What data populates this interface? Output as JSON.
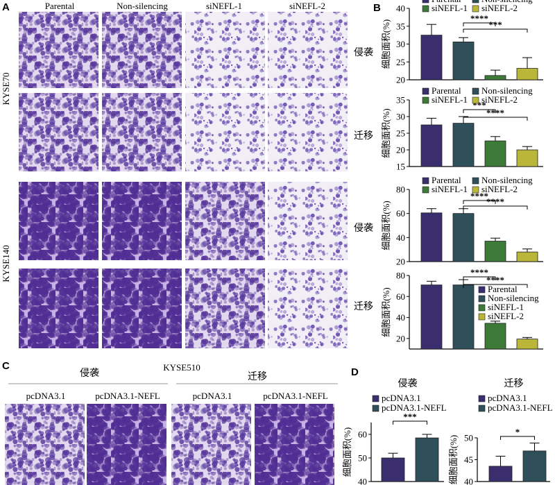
{
  "panels": {
    "A": "A",
    "B": "B",
    "C": "C",
    "D": "D"
  },
  "panel_a": {
    "columns": [
      "Parental",
      "Non-silencing",
      "siNEFL-1",
      "siNEFL-2"
    ],
    "row_groups": [
      "KYSE70",
      "KYSE140"
    ],
    "row_labels": [
      "侵袭",
      "迁移",
      "侵袭",
      "迁移"
    ]
  },
  "panel_c": {
    "cell_line": "KYSE510",
    "group_labels": [
      "侵袭",
      "迁移"
    ],
    "columns": [
      "pcDNA3.1",
      "pcDNA3.1-NEFL",
      "pcDNA3.1",
      "pcDNA3.1-NEFL"
    ]
  },
  "colors": {
    "parental": "#3b2e6e",
    "non_silencing": "#2f4f5a",
    "sinefl1": "#3d7a38",
    "sinefl2": "#b9b63a",
    "pcdna": "#3b2e6e",
    "pcdna_nefl": "#2f4f5a",
    "stain_dark": "#5a3a9e",
    "stain_light": "#c9b8e6",
    "background_light": "#ece6f1"
  },
  "chart_data": [
    {
      "type": "bar",
      "panel": "B",
      "row": "KYSE70 侵袭",
      "categories": [
        "Parental",
        "Non-silencing",
        "siNEFL-1",
        "siNEFL-2"
      ],
      "values": [
        32.5,
        30.6,
        21.2,
        23.2
      ],
      "errors": [
        3.0,
        1.2,
        1.5,
        3.0
      ],
      "ylim": [
        20,
        40
      ],
      "yticks": [
        20,
        25,
        30,
        35,
        40
      ],
      "ylabel": "细胞面积(%)",
      "legend": "top",
      "significance": [
        {
          "from": 1,
          "to": 2,
          "label": "****"
        },
        {
          "from": 1,
          "to": 3,
          "label": "***"
        }
      ]
    },
    {
      "type": "bar",
      "panel": "B",
      "row": "KYSE70 迁移",
      "categories": [
        "Parental",
        "Non-silencing",
        "siNEFL-1",
        "siNEFL-2"
      ],
      "values": [
        27.5,
        28.0,
        22.7,
        20.0
      ],
      "errors": [
        2.0,
        2.0,
        1.3,
        1.0
      ],
      "ylim": [
        15,
        35
      ],
      "yticks": [
        15,
        20,
        25,
        30,
        35
      ],
      "ylabel": "细胞面积(%)",
      "legend": "top",
      "significance": [
        {
          "from": 1,
          "to": 2,
          "label": "***"
        },
        {
          "from": 1,
          "to": 3,
          "label": "****"
        }
      ]
    },
    {
      "type": "bar",
      "panel": "B",
      "row": "KYSE140 侵袭",
      "categories": [
        "Parental",
        "Non-silencing",
        "siNEFL-1",
        "siNEFL-2"
      ],
      "values": [
        60.5,
        60.0,
        37.0,
        28.0
      ],
      "errors": [
        3.5,
        4.0,
        2.5,
        2.5
      ],
      "ylim": [
        20,
        80
      ],
      "yticks": [
        20,
        40,
        60,
        80
      ],
      "ylabel": "细胞面积(%)",
      "legend": "top",
      "significance": [
        {
          "from": 1,
          "to": 2,
          "label": "****"
        },
        {
          "from": 1,
          "to": 3,
          "label": "****"
        }
      ]
    },
    {
      "type": "bar",
      "panel": "B",
      "row": "KYSE140 迁移",
      "categories": [
        "Parental",
        "Non-silencing",
        "siNEFL-1",
        "siNEFL-2"
      ],
      "values": [
        71.0,
        71.0,
        34.5,
        19.5
      ],
      "errors": [
        3.5,
        5.0,
        2.0,
        1.5
      ],
      "ylim": [
        10,
        80
      ],
      "yticks": [
        20,
        40,
        60,
        80
      ],
      "ylabel": "细胞面积(%)",
      "legend": "right",
      "significance": [
        {
          "from": 1,
          "to": 2,
          "label": "****"
        },
        {
          "from": 1,
          "to": 3,
          "label": "****"
        }
      ]
    },
    {
      "type": "bar",
      "panel": "D",
      "title": "侵袭",
      "categories": [
        "pcDNA3.1",
        "pcDNA3.1-NEFL"
      ],
      "values": [
        50.0,
        58.5
      ],
      "errors": [
        2.0,
        1.5
      ],
      "ylim": [
        40,
        65
      ],
      "yticks": [
        40,
        50,
        60
      ],
      "ylabel": "细胞面积(%)",
      "legend": "top",
      "significance": [
        {
          "from": 0,
          "to": 1,
          "label": "***"
        }
      ]
    },
    {
      "type": "bar",
      "panel": "D",
      "title": "迁移",
      "categories": [
        "pcDNA3.1",
        "pcDNA3.1-NEFL"
      ],
      "values": [
        43.5,
        47.0
      ],
      "errors": [
        2.3,
        1.8
      ],
      "ylim": [
        40,
        50
      ],
      "yticks": [
        40,
        45,
        50
      ],
      "ylabel": "细胞面积(%)",
      "legend": "top",
      "significance": [
        {
          "from": 0,
          "to": 1,
          "label": "*"
        }
      ]
    }
  ]
}
